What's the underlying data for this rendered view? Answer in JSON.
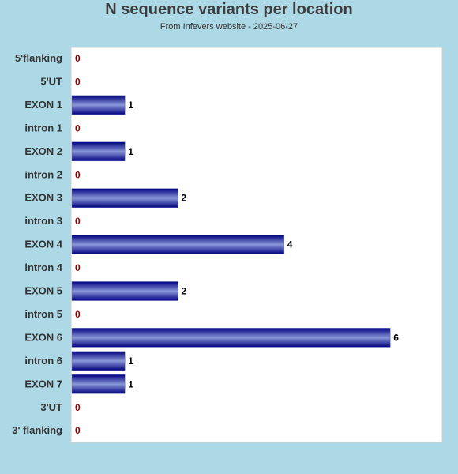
{
  "chart_data": {
    "type": "bar",
    "orientation": "horizontal",
    "title": "N sequence variants per location",
    "subtitle": "From Infevers website - 2025-06-27",
    "categories": [
      "5'flanking",
      "5'UT",
      "EXON 1",
      "intron 1",
      "EXON 2",
      "intron 2",
      "EXON 3",
      "intron 3",
      "EXON 4",
      "intron 4",
      "EXON 5",
      "intron 5",
      "EXON 6",
      "intron 6",
      "EXON 7",
      "3'UT",
      "3' flanking"
    ],
    "values": [
      0,
      0,
      1,
      0,
      1,
      0,
      2,
      0,
      4,
      0,
      2,
      0,
      6,
      1,
      1,
      0,
      0
    ],
    "value_labels": [
      "0",
      "0",
      "1",
      "0",
      "1",
      "0",
      "2",
      "0",
      "4",
      "0",
      "2",
      "0",
      "6",
      "1",
      "1",
      "0",
      "0"
    ],
    "xlim": [
      0,
      7
    ],
    "grid": false,
    "colors": {
      "background": "#add8e6",
      "plot_area": "#ffffff",
      "bar_edge": "#000080",
      "bar_mid": "#8a97d8",
      "zero_label": "#8b0000",
      "value_label": "#000000"
    }
  }
}
